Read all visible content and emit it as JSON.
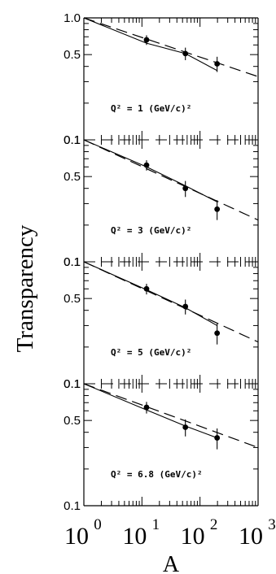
{
  "figure": {
    "ylabel": "Transparency",
    "xlabel": "A"
  },
  "chart_data": [
    {
      "type": "scatter",
      "label": "Q² = 1 (GeV/c)²",
      "xscale": "log",
      "yscale": "log",
      "xlim": [
        1,
        1000
      ],
      "ylim": [
        0.1,
        1.0
      ],
      "yticklabels": [
        "0.1",
        "0.5",
        "1.0"
      ],
      "points": [
        {
          "x": 12,
          "y": 0.66,
          "err": 0.06
        },
        {
          "x": 56,
          "y": 0.51,
          "err": 0.06
        },
        {
          "x": 197,
          "y": 0.42,
          "err": 0.06
        }
      ],
      "solid_line": {
        "x": [
          1,
          12,
          56,
          197
        ],
        "y": [
          1.0,
          0.62,
          0.51,
          0.37
        ]
      },
      "dashed_line": {
        "x": [
          1,
          1000
        ],
        "y": [
          1.0,
          0.33
        ]
      }
    },
    {
      "type": "scatter",
      "label": "Q² = 3 (GeV/c)²",
      "xscale": "log",
      "yscale": "log",
      "xlim": [
        1,
        1000
      ],
      "ylim": [
        0.1,
        1.0
      ],
      "yticklabels": [
        "0.1",
        "0.5",
        "0.1"
      ],
      "points": [
        {
          "x": 12,
          "y": 0.62,
          "err": 0.06
        },
        {
          "x": 56,
          "y": 0.4,
          "err": 0.06
        },
        {
          "x": 197,
          "y": 0.27,
          "err": 0.05
        }
      ],
      "solid_line": {
        "x": [
          1,
          12,
          56,
          197
        ],
        "y": [
          1.0,
          0.6,
          0.42,
          0.31
        ]
      },
      "dashed_line": {
        "x": [
          1,
          1000
        ],
        "y": [
          1.0,
          0.22
        ]
      }
    },
    {
      "type": "scatter",
      "label": "Q² = 5 (GeV/c)²",
      "xscale": "log",
      "yscale": "log",
      "xlim": [
        1,
        1000
      ],
      "ylim": [
        0.1,
        1.0
      ],
      "yticklabels": [
        "0.1",
        "0.5",
        "0.1"
      ],
      "points": [
        {
          "x": 12,
          "y": 0.6,
          "err": 0.06
        },
        {
          "x": 56,
          "y": 0.43,
          "err": 0.06
        },
        {
          "x": 197,
          "y": 0.26,
          "err": 0.05
        }
      ],
      "solid_line": {
        "x": [
          1,
          12,
          56,
          197
        ],
        "y": [
          1.0,
          0.59,
          0.42,
          0.3
        ]
      },
      "dashed_line": {
        "x": [
          1,
          1000
        ],
        "y": [
          1.0,
          0.22
        ]
      }
    },
    {
      "type": "scatter",
      "label": "Q² = 6.8 (GeV/c)²",
      "xscale": "log",
      "yscale": "log",
      "xlim": [
        1,
        1000
      ],
      "ylim": [
        0.1,
        1.0
      ],
      "yticklabels": [
        "0.1",
        "0.5",
        "0.1"
      ],
      "xticklabels": [
        {
          "base": "10",
          "exp": "0"
        },
        {
          "base": "10",
          "exp": "1"
        },
        {
          "base": "10",
          "exp": "2"
        },
        {
          "base": "10",
          "exp": "3"
        }
      ],
      "points": [
        {
          "x": 12,
          "y": 0.64,
          "err": 0.07
        },
        {
          "x": 56,
          "y": 0.44,
          "err": 0.07
        },
        {
          "x": 197,
          "y": 0.36,
          "err": 0.07
        }
      ],
      "solid_line": {
        "x": [
          1,
          12,
          56,
          197
        ],
        "y": [
          1.0,
          0.61,
          0.45,
          0.36
        ]
      },
      "dashed_line": {
        "x": [
          1,
          1000
        ],
        "y": [
          1.0,
          0.3
        ]
      }
    }
  ]
}
